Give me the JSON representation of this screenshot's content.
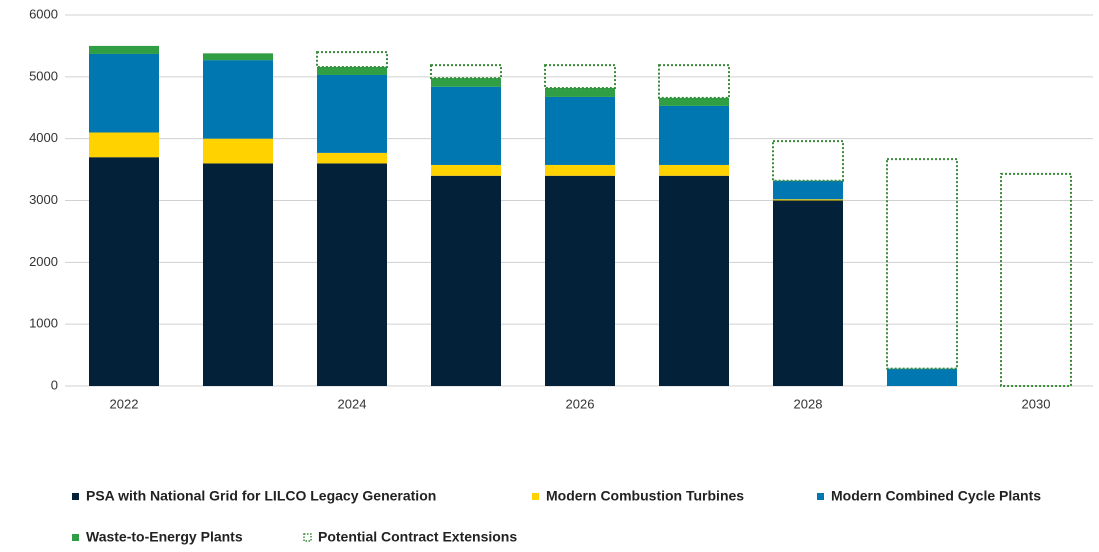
{
  "chart_data": {
    "type": "bar",
    "stacked": true,
    "categories": [
      "2022",
      null,
      "2024",
      null,
      "2026",
      null,
      "2028",
      null,
      "2030"
    ],
    "series": [
      {
        "name": "PSA with National Grid for LILCO Legacy Generation",
        "color": "#03223a",
        "values": [
          3700,
          3600,
          3600,
          3400,
          3400,
          3400,
          3000,
          0,
          0
        ]
      },
      {
        "name": "Modern Combustion Turbines",
        "color": "#ffd200",
        "values": [
          400,
          400,
          170,
          175,
          175,
          175,
          20,
          0,
          0
        ]
      },
      {
        "name": "Modern Combined Cycle Plants",
        "color": "#0077b0",
        "values": [
          1270,
          1270,
          1260,
          1265,
          1100,
          955,
          300,
          280,
          0
        ]
      },
      {
        "name": "Waste-to-Energy Plants",
        "color": "#2f9e44",
        "values": [
          130,
          110,
          130,
          140,
          145,
          130,
          0,
          0,
          0
        ]
      },
      {
        "name": "Potential Contract Extensions",
        "color": "#3a8b3a",
        "dotted": true,
        "values": [
          0,
          0,
          240,
          210,
          370,
          530,
          640,
          3390,
          3430
        ]
      }
    ],
    "ylim": [
      0,
      6000
    ],
    "yticks": [
      0,
      1000,
      2000,
      3000,
      4000,
      5000,
      6000
    ],
    "grid": true
  }
}
